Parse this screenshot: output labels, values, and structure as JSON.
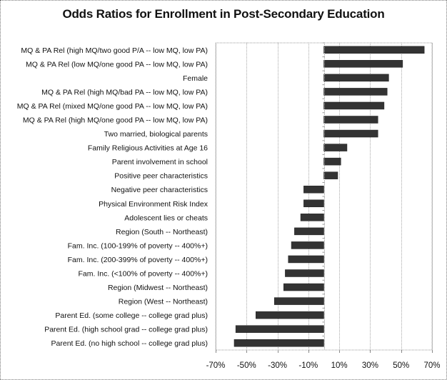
{
  "chart_data": {
    "type": "bar",
    "orientation": "horizontal",
    "title": "Odds Ratios for Enrollment in Post-Secondary Education",
    "xlabel": "",
    "ylabel": "",
    "xlim": [
      -70,
      70
    ],
    "xticks": [
      -70,
      -50,
      -30,
      -10,
      10,
      30,
      50,
      70
    ],
    "xtick_labels": [
      "-70%",
      "-50%",
      "-30%",
      "-10%",
      "10%",
      "30%",
      "50%",
      "70%"
    ],
    "grid": "vertical",
    "legend": "none",
    "bar_color": "#333333",
    "categories": [
      "MQ & PA Rel (high MQ/two good P/A -- low MQ, low PA)",
      "MQ & PA Rel (low MQ/one good PA -- low MQ, low PA)",
      "Female",
      "MQ & PA Rel (high MQ/bad PA -- low MQ, low PA)",
      "MQ & PA Rel (mixed MQ/one good PA -- low MQ, low PA)",
      "MQ & PA Rel (high MQ/one good PA -- low MQ, low PA)",
      "Two married, biological parents",
      "Family Religious Activities at Age 16",
      "Parent involvement in school",
      "Positive peer characteristics",
      "Negative peer characteristics",
      "Physical Environment Risk Index",
      "Adolescent lies or cheats",
      "Region (South -- Northeast)",
      "Fam. Inc. (100-199% of poverty -- 400%+)",
      "Fam. Inc. (200-399% of poverty -- 400%+)",
      "Fam. Inc. (<100% of poverty -- 400%+)",
      "Region (Midwest -- Northeast)",
      "Region (West -- Northeast)",
      "Parent Ed. (some college  -- college grad plus)",
      "Parent Ed. (high school grad -- college grad plus)",
      "Parent Ed. (no high school -- college grad plus)"
    ],
    "values": [
      65,
      51,
      42,
      41,
      39,
      35,
      35,
      15,
      11,
      9,
      -13,
      -13,
      -15,
      -19,
      -21,
      -23,
      -25,
      -26,
      -32,
      -44,
      -57,
      -58
    ]
  }
}
